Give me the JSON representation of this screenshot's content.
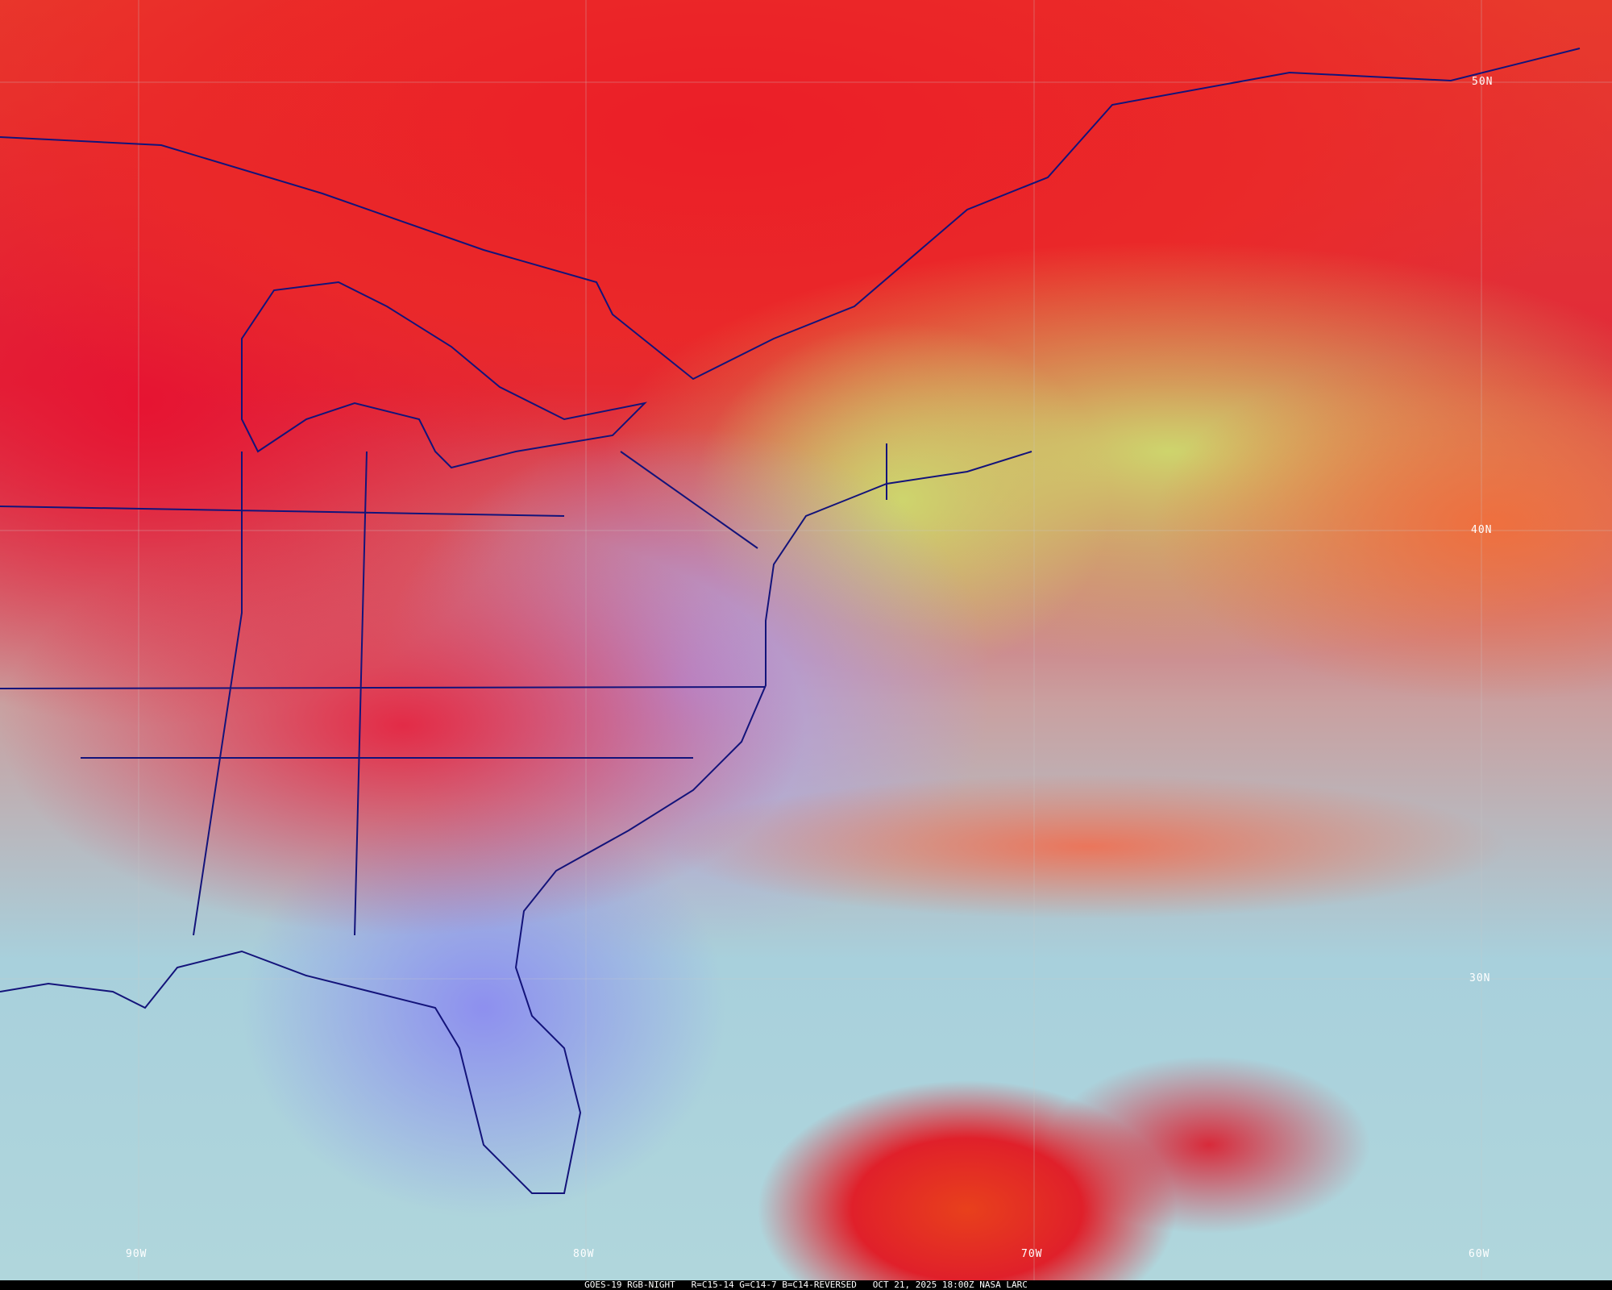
{
  "map": {
    "caption": "GOES-19 RGB-NIGHT   R=C15-14 G=C14-7 B=C14-REVERSED   OCT 21, 2025 18:00Z NASA LARC",
    "lat_labels": [
      "50N",
      "40N",
      "30N"
    ],
    "lon_labels": [
      "90W",
      "80W",
      "70W",
      "60W"
    ],
    "colors": {
      "border": "#13137a",
      "high_cloud": "#e02a3a",
      "low_cloud": "#cddc6e",
      "clear_ocean": "#a8d0dc",
      "land": "#a8a0f0"
    }
  }
}
